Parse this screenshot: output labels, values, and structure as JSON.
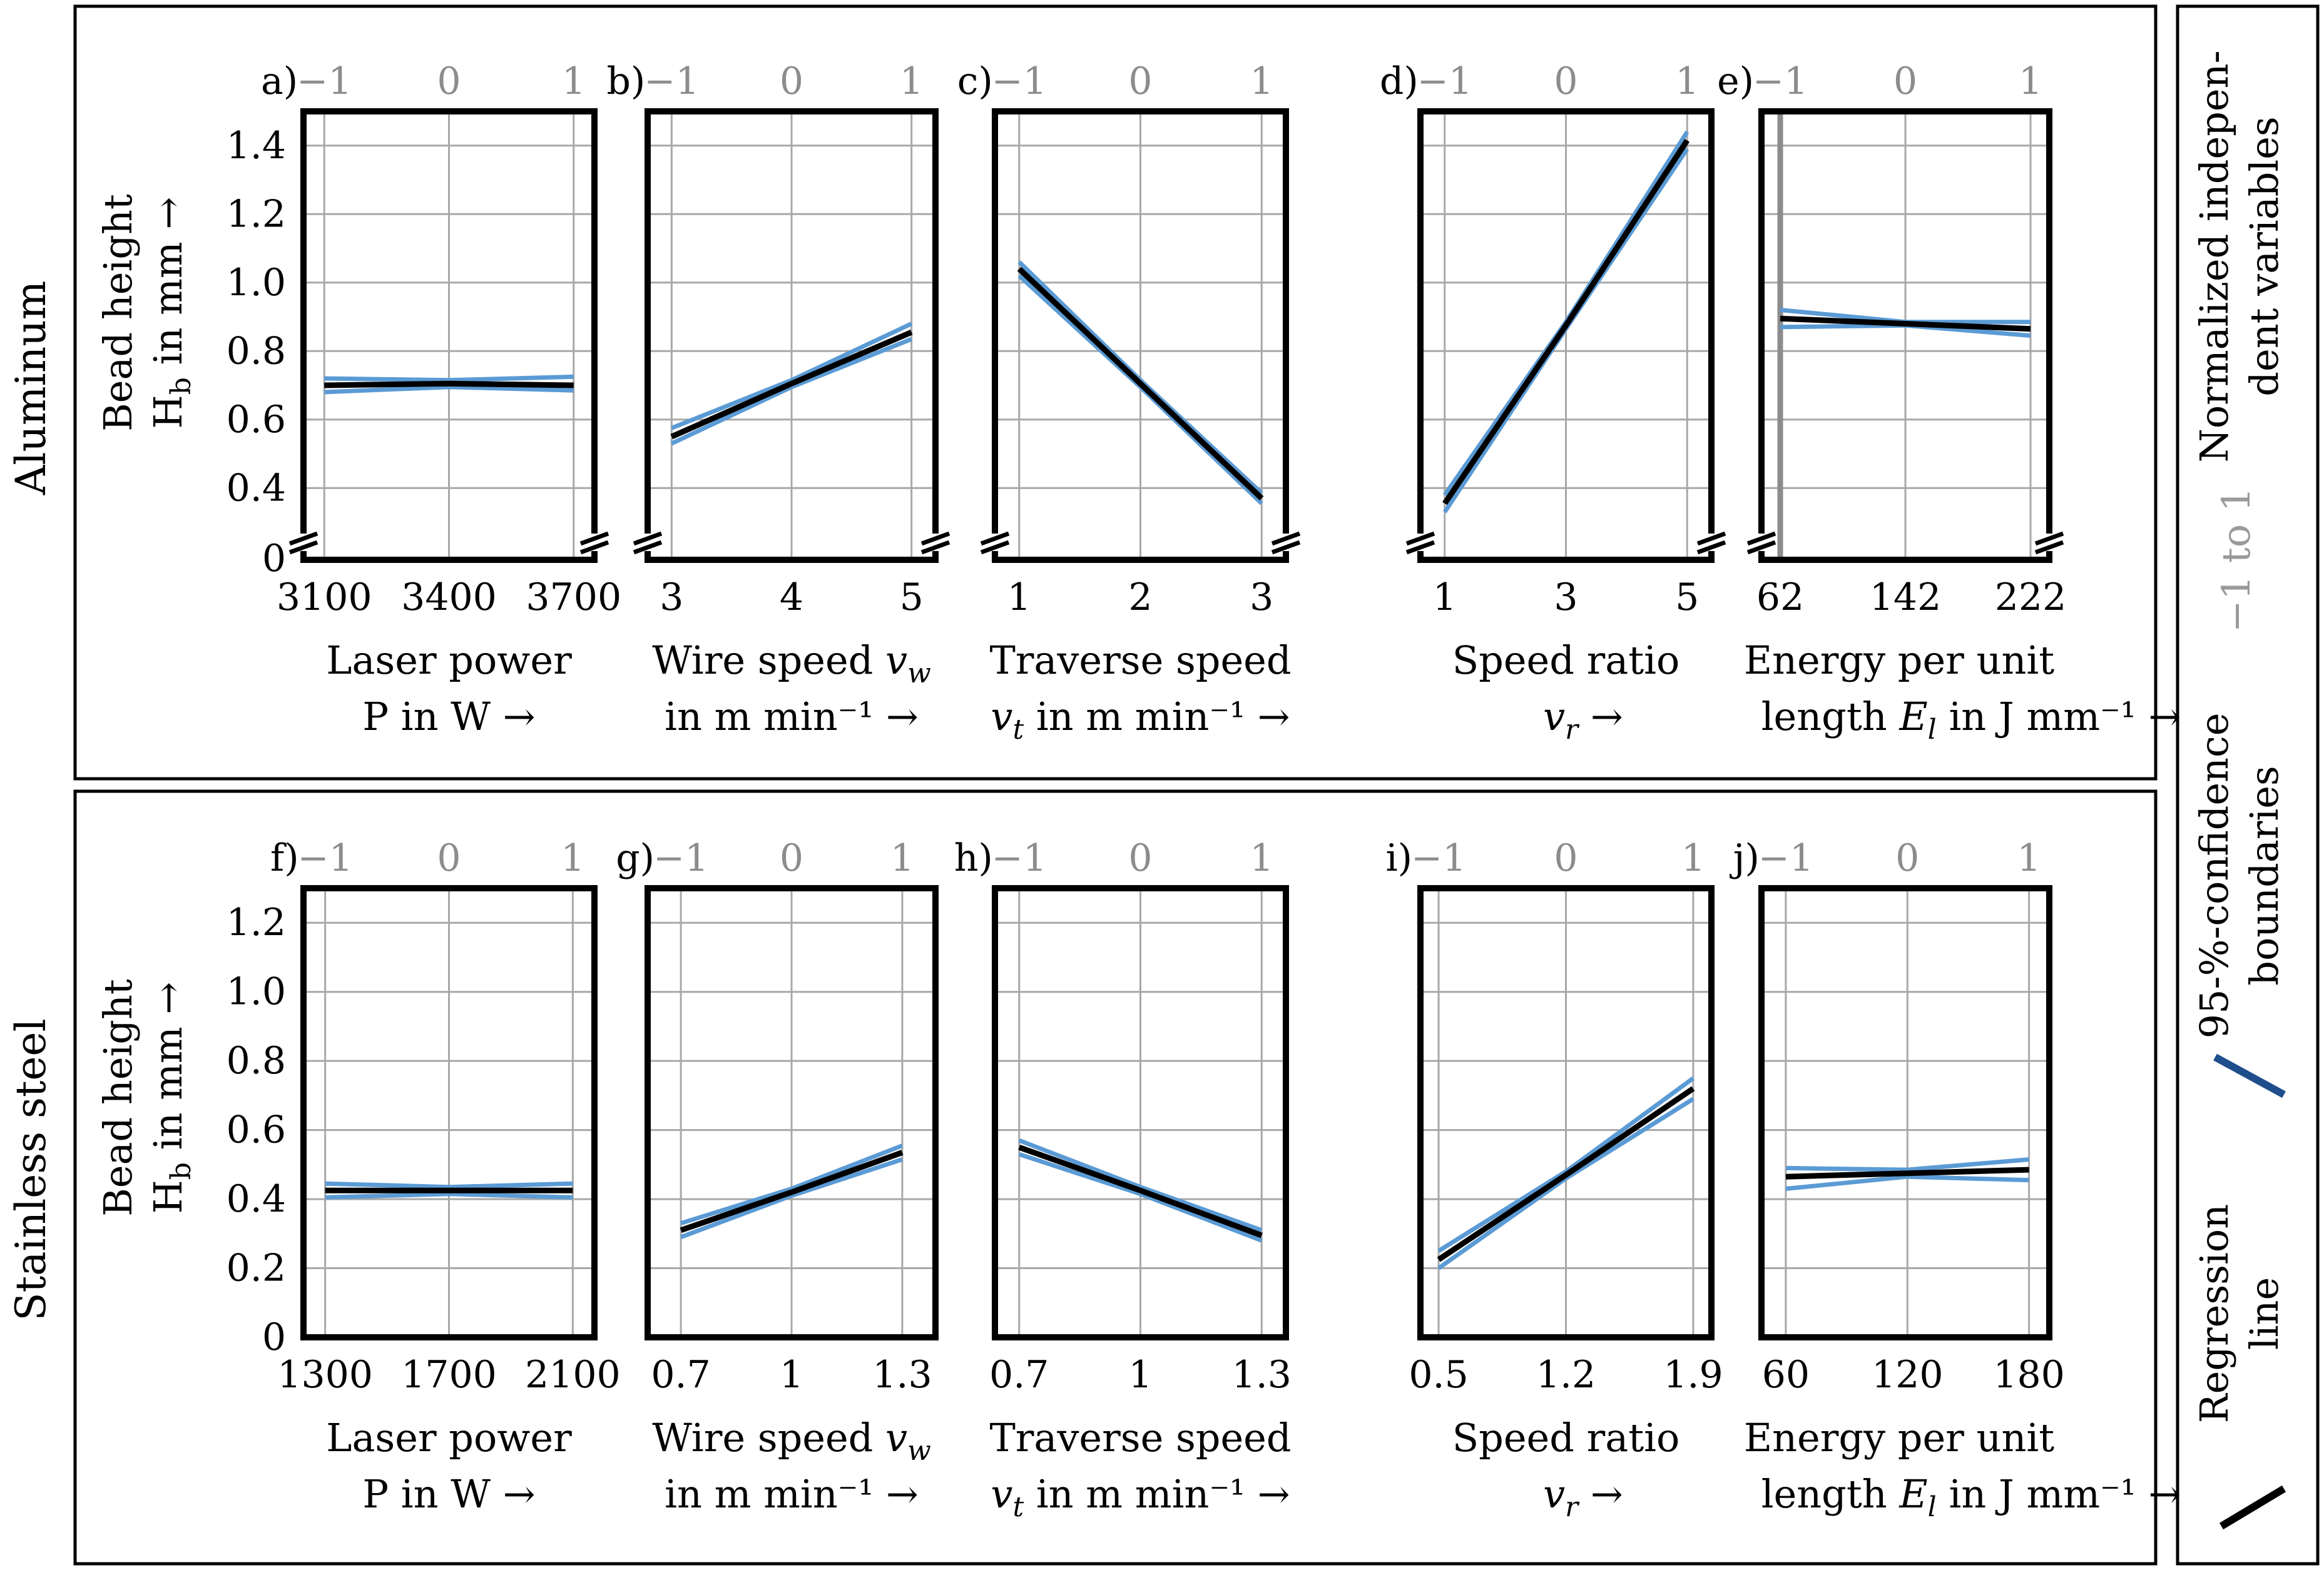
{
  "legend": {
    "regression_label_line1": "Regression",
    "regression_label_line2": "line",
    "ci_label_line1": "95-%-confidence",
    "ci_label_line2": "boundaries",
    "norm_label_gray": "−1 to 1",
    "norm_label_line1": "Normalized indepen-",
    "norm_label_line2": "dent variables",
    "regression_color": "#000000",
    "ci_color": "#5b9bd5",
    "ci_legend_color": "#1f4e8c",
    "gray_color": "#8c8c8c"
  },
  "rows": [
    {
      "material": "Aluminum",
      "ylabel_line1": "Bead height",
      "ylabel_line2": "H",
      "ylabel_sub": "b",
      "ylabel_line2_rest": " in mm →"
    },
    {
      "material": "Stainless steel",
      "ylabel_line1": "Bead height",
      "ylabel_line2": "H",
      "ylabel_sub": "b",
      "ylabel_line2_rest": " in mm →"
    }
  ],
  "chart_data": [
    {
      "type": "line",
      "id": "a",
      "letter": "a)",
      "row": 0,
      "xlabel_line1": "Laser power",
      "xlabel_line2": "P in W →",
      "x_ticks": [
        3100,
        3400,
        3700
      ],
      "x_tick_labels": [
        "3100",
        "3400",
        "3700"
      ],
      "xlim": [
        3050,
        3750
      ],
      "top_ticks": [
        "−1",
        "0",
        "1"
      ],
      "ylim": [
        0,
        1.5
      ],
      "axis_break": true,
      "y_ticks": [
        0,
        0.4,
        0.6,
        0.8,
        1.0,
        1.2,
        1.4
      ],
      "y_tick_labels": [
        "0",
        "0.4",
        "0.6",
        "0.8",
        "1.0",
        "1.2",
        "1.4"
      ],
      "x": [
        3100,
        3400,
        3700
      ],
      "series": [
        {
          "name": "Regression line",
          "values": [
            0.7,
            0.705,
            0.7
          ]
        },
        {
          "name": "95-%-confidence upper",
          "values": [
            0.72,
            0.715,
            0.725
          ]
        },
        {
          "name": "95-%-confidence lower",
          "values": [
            0.68,
            0.695,
            0.685
          ]
        }
      ]
    },
    {
      "type": "line",
      "id": "b",
      "letter": "b)",
      "row": 0,
      "xlabel_line1": "Wire speed v_w",
      "xlabel_line2": "in m min⁻¹ →",
      "x_ticks": [
        3,
        4,
        5
      ],
      "x_tick_labels": [
        "3",
        "4",
        "5"
      ],
      "xlim": [
        2.8,
        5.2
      ],
      "top_ticks": [
        "−1",
        "0",
        "1"
      ],
      "ylim": [
        0,
        1.5
      ],
      "axis_break": true,
      "x": [
        3,
        4,
        5
      ],
      "series": [
        {
          "name": "Regression line",
          "values": [
            0.55,
            0.705,
            0.855
          ]
        },
        {
          "name": "95-%-confidence upper",
          "values": [
            0.575,
            0.715,
            0.88
          ]
        },
        {
          "name": "95-%-confidence lower",
          "values": [
            0.53,
            0.695,
            0.835
          ]
        }
      ]
    },
    {
      "type": "line",
      "id": "c",
      "letter": "c)",
      "row": 0,
      "xlabel_line1": "Traverse speed",
      "xlabel_line2": "v_t in m min⁻¹ →",
      "x_ticks": [
        1,
        2,
        3
      ],
      "x_tick_labels": [
        "1",
        "2",
        "3"
      ],
      "xlim": [
        0.8,
        3.2
      ],
      "top_ticks": [
        "−1",
        "0",
        "1"
      ],
      "ylim": [
        0,
        1.5
      ],
      "axis_break": true,
      "x": [
        1,
        2,
        3
      ],
      "series": [
        {
          "name": "Regression line",
          "values": [
            1.04,
            0.705,
            0.37
          ]
        },
        {
          "name": "95-%-confidence upper",
          "values": [
            1.06,
            0.715,
            0.385
          ]
        },
        {
          "name": "95-%-confidence lower",
          "values": [
            1.02,
            0.695,
            0.355
          ]
        }
      ]
    },
    {
      "type": "line",
      "id": "d",
      "letter": "d)",
      "row": 0,
      "xlabel_line1": "Speed ratio",
      "xlabel_line2": "v_r →",
      "x_ticks": [
        1,
        3,
        5
      ],
      "x_tick_labels": [
        "1",
        "3",
        "5"
      ],
      "xlim": [
        0.6,
        5.4
      ],
      "top_ticks": [
        "−1",
        "0",
        "1"
      ],
      "ylim": [
        0,
        1.5
      ],
      "axis_break": true,
      "x": [
        1,
        3,
        5
      ],
      "series": [
        {
          "name": "Regression line",
          "values": [
            0.355,
            0.875,
            1.415
          ]
        },
        {
          "name": "95-%-confidence upper",
          "values": [
            0.38,
            0.885,
            1.44
          ]
        },
        {
          "name": "95-%-confidence lower",
          "values": [
            0.33,
            0.865,
            1.39
          ]
        }
      ]
    },
    {
      "type": "line",
      "id": "e",
      "letter": "e)",
      "row": 0,
      "xlabel_line1": "Energy per unit",
      "xlabel_line2": "length E_l in J mm⁻¹ →",
      "x_ticks": [
        62,
        142,
        222
      ],
      "x_tick_labels": [
        "62",
        "142",
        "222"
      ],
      "xlim": [
        50,
        234
      ],
      "top_ticks": [
        "−1",
        "0",
        "1"
      ],
      "ylim": [
        0,
        1.5
      ],
      "axis_break": true,
      "gray_vline_at": 62,
      "x": [
        62,
        142,
        222
      ],
      "series": [
        {
          "name": "Regression line",
          "values": [
            0.895,
            0.88,
            0.865
          ]
        },
        {
          "name": "95-%-confidence upper",
          "values": [
            0.92,
            0.885,
            0.885
          ]
        },
        {
          "name": "95-%-confidence lower",
          "values": [
            0.87,
            0.875,
            0.845
          ]
        }
      ]
    },
    {
      "type": "line",
      "id": "f",
      "letter": "f)",
      "row": 1,
      "xlabel_line1": "Laser power",
      "xlabel_line2": "P in W →",
      "x_ticks": [
        1300,
        1700,
        2100
      ],
      "x_tick_labels": [
        "1300",
        "1700",
        "2100"
      ],
      "xlim": [
        1230,
        2170
      ],
      "top_ticks": [
        "−1",
        "0",
        "1"
      ],
      "ylim": [
        0,
        1.3
      ],
      "axis_break": false,
      "y_ticks": [
        0,
        0.2,
        0.4,
        0.6,
        0.8,
        1.0,
        1.2
      ],
      "y_tick_labels": [
        "0",
        "0.2",
        "0.4",
        "0.6",
        "0.8",
        "1.0",
        "1.2"
      ],
      "x": [
        1300,
        1700,
        2100
      ],
      "series": [
        {
          "name": "Regression line",
          "values": [
            0.425,
            0.425,
            0.425
          ]
        },
        {
          "name": "95-%-confidence upper",
          "values": [
            0.445,
            0.435,
            0.445
          ]
        },
        {
          "name": "95-%-confidence lower",
          "values": [
            0.405,
            0.415,
            0.405
          ]
        }
      ]
    },
    {
      "type": "line",
      "id": "g",
      "letter": "g)",
      "row": 1,
      "xlabel_line1": "Wire speed v_w",
      "xlabel_line2": "in m min⁻¹ →",
      "x_ticks": [
        0.7,
        1.0,
        1.3
      ],
      "x_tick_labels": [
        "0.7",
        "1",
        "1.3"
      ],
      "xlim": [
        0.61,
        1.39
      ],
      "top_ticks": [
        "−1",
        "0",
        "1"
      ],
      "ylim": [
        0,
        1.3
      ],
      "axis_break": false,
      "x": [
        0.7,
        1.0,
        1.3
      ],
      "series": [
        {
          "name": "Regression line",
          "values": [
            0.31,
            0.42,
            0.535
          ]
        },
        {
          "name": "95-%-confidence upper",
          "values": [
            0.33,
            0.43,
            0.555
          ]
        },
        {
          "name": "95-%-confidence lower",
          "values": [
            0.29,
            0.41,
            0.515
          ]
        }
      ]
    },
    {
      "type": "line",
      "id": "h",
      "letter": "h)",
      "row": 1,
      "xlabel_line1": "Traverse speed",
      "xlabel_line2": "v_t in m min⁻¹ →",
      "x_ticks": [
        0.7,
        1.0,
        1.3
      ],
      "x_tick_labels": [
        "0.7",
        "1",
        "1.3"
      ],
      "xlim": [
        0.64,
        1.36
      ],
      "top_ticks": [
        "−1",
        "0",
        "1"
      ],
      "ylim": [
        0,
        1.3
      ],
      "axis_break": false,
      "x": [
        0.7,
        1.0,
        1.3
      ],
      "series": [
        {
          "name": "Regression line",
          "values": [
            0.55,
            0.425,
            0.295
          ]
        },
        {
          "name": "95-%-confidence upper",
          "values": [
            0.57,
            0.435,
            0.31
          ]
        },
        {
          "name": "95-%-confidence lower",
          "values": [
            0.53,
            0.415,
            0.28
          ]
        }
      ]
    },
    {
      "type": "line",
      "id": "i",
      "letter": "i)",
      "row": 1,
      "xlabel_line1": "Speed ratio",
      "xlabel_line2": "v_r →",
      "x_ticks": [
        0.5,
        1.2,
        1.9
      ],
      "x_tick_labels": [
        "0.5",
        "1.2",
        "1.9"
      ],
      "xlim": [
        0.4,
        2.0
      ],
      "top_ticks": [
        "−1",
        "0",
        "1"
      ],
      "ylim": [
        0,
        1.3
      ],
      "axis_break": false,
      "x": [
        0.5,
        1.2,
        1.9
      ],
      "series": [
        {
          "name": "Regression line",
          "values": [
            0.225,
            0.47,
            0.72
          ]
        },
        {
          "name": "95-%-confidence upper",
          "values": [
            0.25,
            0.48,
            0.75
          ]
        },
        {
          "name": "95-%-confidence lower",
          "values": [
            0.2,
            0.46,
            0.69
          ]
        }
      ]
    },
    {
      "type": "line",
      "id": "j",
      "letter": "j)",
      "row": 1,
      "xlabel_line1": "Energy per unit",
      "xlabel_line2": "length E_l in J mm⁻¹ →",
      "x_ticks": [
        60,
        120,
        180
      ],
      "x_tick_labels": [
        "60",
        "120",
        "180"
      ],
      "xlim": [
        48,
        190
      ],
      "top_ticks": [
        "−1",
        "0",
        "1"
      ],
      "ylim": [
        0,
        1.3
      ],
      "axis_break": false,
      "x": [
        60,
        120,
        180
      ],
      "series": [
        {
          "name": "Regression line",
          "values": [
            0.465,
            0.475,
            0.485
          ]
        },
        {
          "name": "95-%-confidence upper",
          "values": [
            0.49,
            0.485,
            0.515
          ]
        },
        {
          "name": "95-%-confidence lower",
          "values": [
            0.43,
            0.465,
            0.455
          ]
        }
      ]
    }
  ]
}
